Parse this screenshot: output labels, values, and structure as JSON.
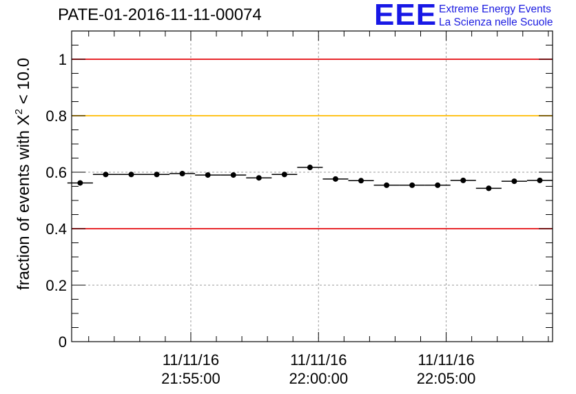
{
  "title": "PATE-01-2016-11-11-00074",
  "logo": {
    "mark": "EEE",
    "line1": "Extreme Energy Events",
    "line2": "La Scienza nelle Scuole"
  },
  "chart_data": {
    "type": "scatter",
    "title": "PATE-01-2016-11-11-00074",
    "ylabel": "fraction of events with X² < 10.0",
    "ylabel_parts": {
      "prefix": "fraction of events with X",
      "sup": "2",
      "suffix": " < 10.0"
    },
    "xlabel": "",
    "x_ticks": [
      {
        "x": "2016-11-11 21:55:00",
        "label_date": "11/11/16",
        "label_time": "21:55:00"
      },
      {
        "x": "2016-11-11 22:00:00",
        "label_date": "11/11/16",
        "label_time": "22:00:00"
      },
      {
        "x": "2016-11-11 22:05:00",
        "label_date": "11/11/16",
        "label_time": "22:05:00"
      }
    ],
    "xlim": [
      "2016-11-11 21:50:20",
      "2016-11-11 22:09:10"
    ],
    "ylim": [
      0,
      1.1
    ],
    "y_ticks": [
      0,
      0.2,
      0.4,
      0.6,
      0.8,
      1
    ],
    "y_tick_labels": [
      "0",
      "0.2",
      "0.4",
      "0.6",
      "0.8",
      "1"
    ],
    "grid": true,
    "reference_lines": [
      {
        "y": 1.0,
        "color": "#e8262a"
      },
      {
        "y": 0.8,
        "color": "#ffc21c"
      },
      {
        "y": 0.4,
        "color": "#e8262a"
      }
    ],
    "point_color": "#000000",
    "points": [
      {
        "x": "2016-11-11 21:50:40",
        "y": 0.562
      },
      {
        "x": "2016-11-11 21:51:40",
        "y": 0.592
      },
      {
        "x": "2016-11-11 21:52:40",
        "y": 0.592
      },
      {
        "x": "2016-11-11 21:53:40",
        "y": 0.592
      },
      {
        "x": "2016-11-11 21:54:40",
        "y": 0.595
      },
      {
        "x": "2016-11-11 21:55:40",
        "y": 0.59
      },
      {
        "x": "2016-11-11 21:56:40",
        "y": 0.59
      },
      {
        "x": "2016-11-11 21:57:40",
        "y": 0.58
      },
      {
        "x": "2016-11-11 21:58:40",
        "y": 0.592
      },
      {
        "x": "2016-11-11 21:59:40",
        "y": 0.617
      },
      {
        "x": "2016-11-11 22:00:40",
        "y": 0.576
      },
      {
        "x": "2016-11-11 22:01:40",
        "y": 0.57
      },
      {
        "x": "2016-11-11 22:02:40",
        "y": 0.554
      },
      {
        "x": "2016-11-11 22:03:40",
        "y": 0.554
      },
      {
        "x": "2016-11-11 22:04:40",
        "y": 0.554
      },
      {
        "x": "2016-11-11 22:05:40",
        "y": 0.571
      },
      {
        "x": "2016-11-11 22:06:40",
        "y": 0.543
      },
      {
        "x": "2016-11-11 22:07:40",
        "y": 0.568
      },
      {
        "x": "2016-11-11 22:08:40",
        "y": 0.571
      }
    ]
  }
}
